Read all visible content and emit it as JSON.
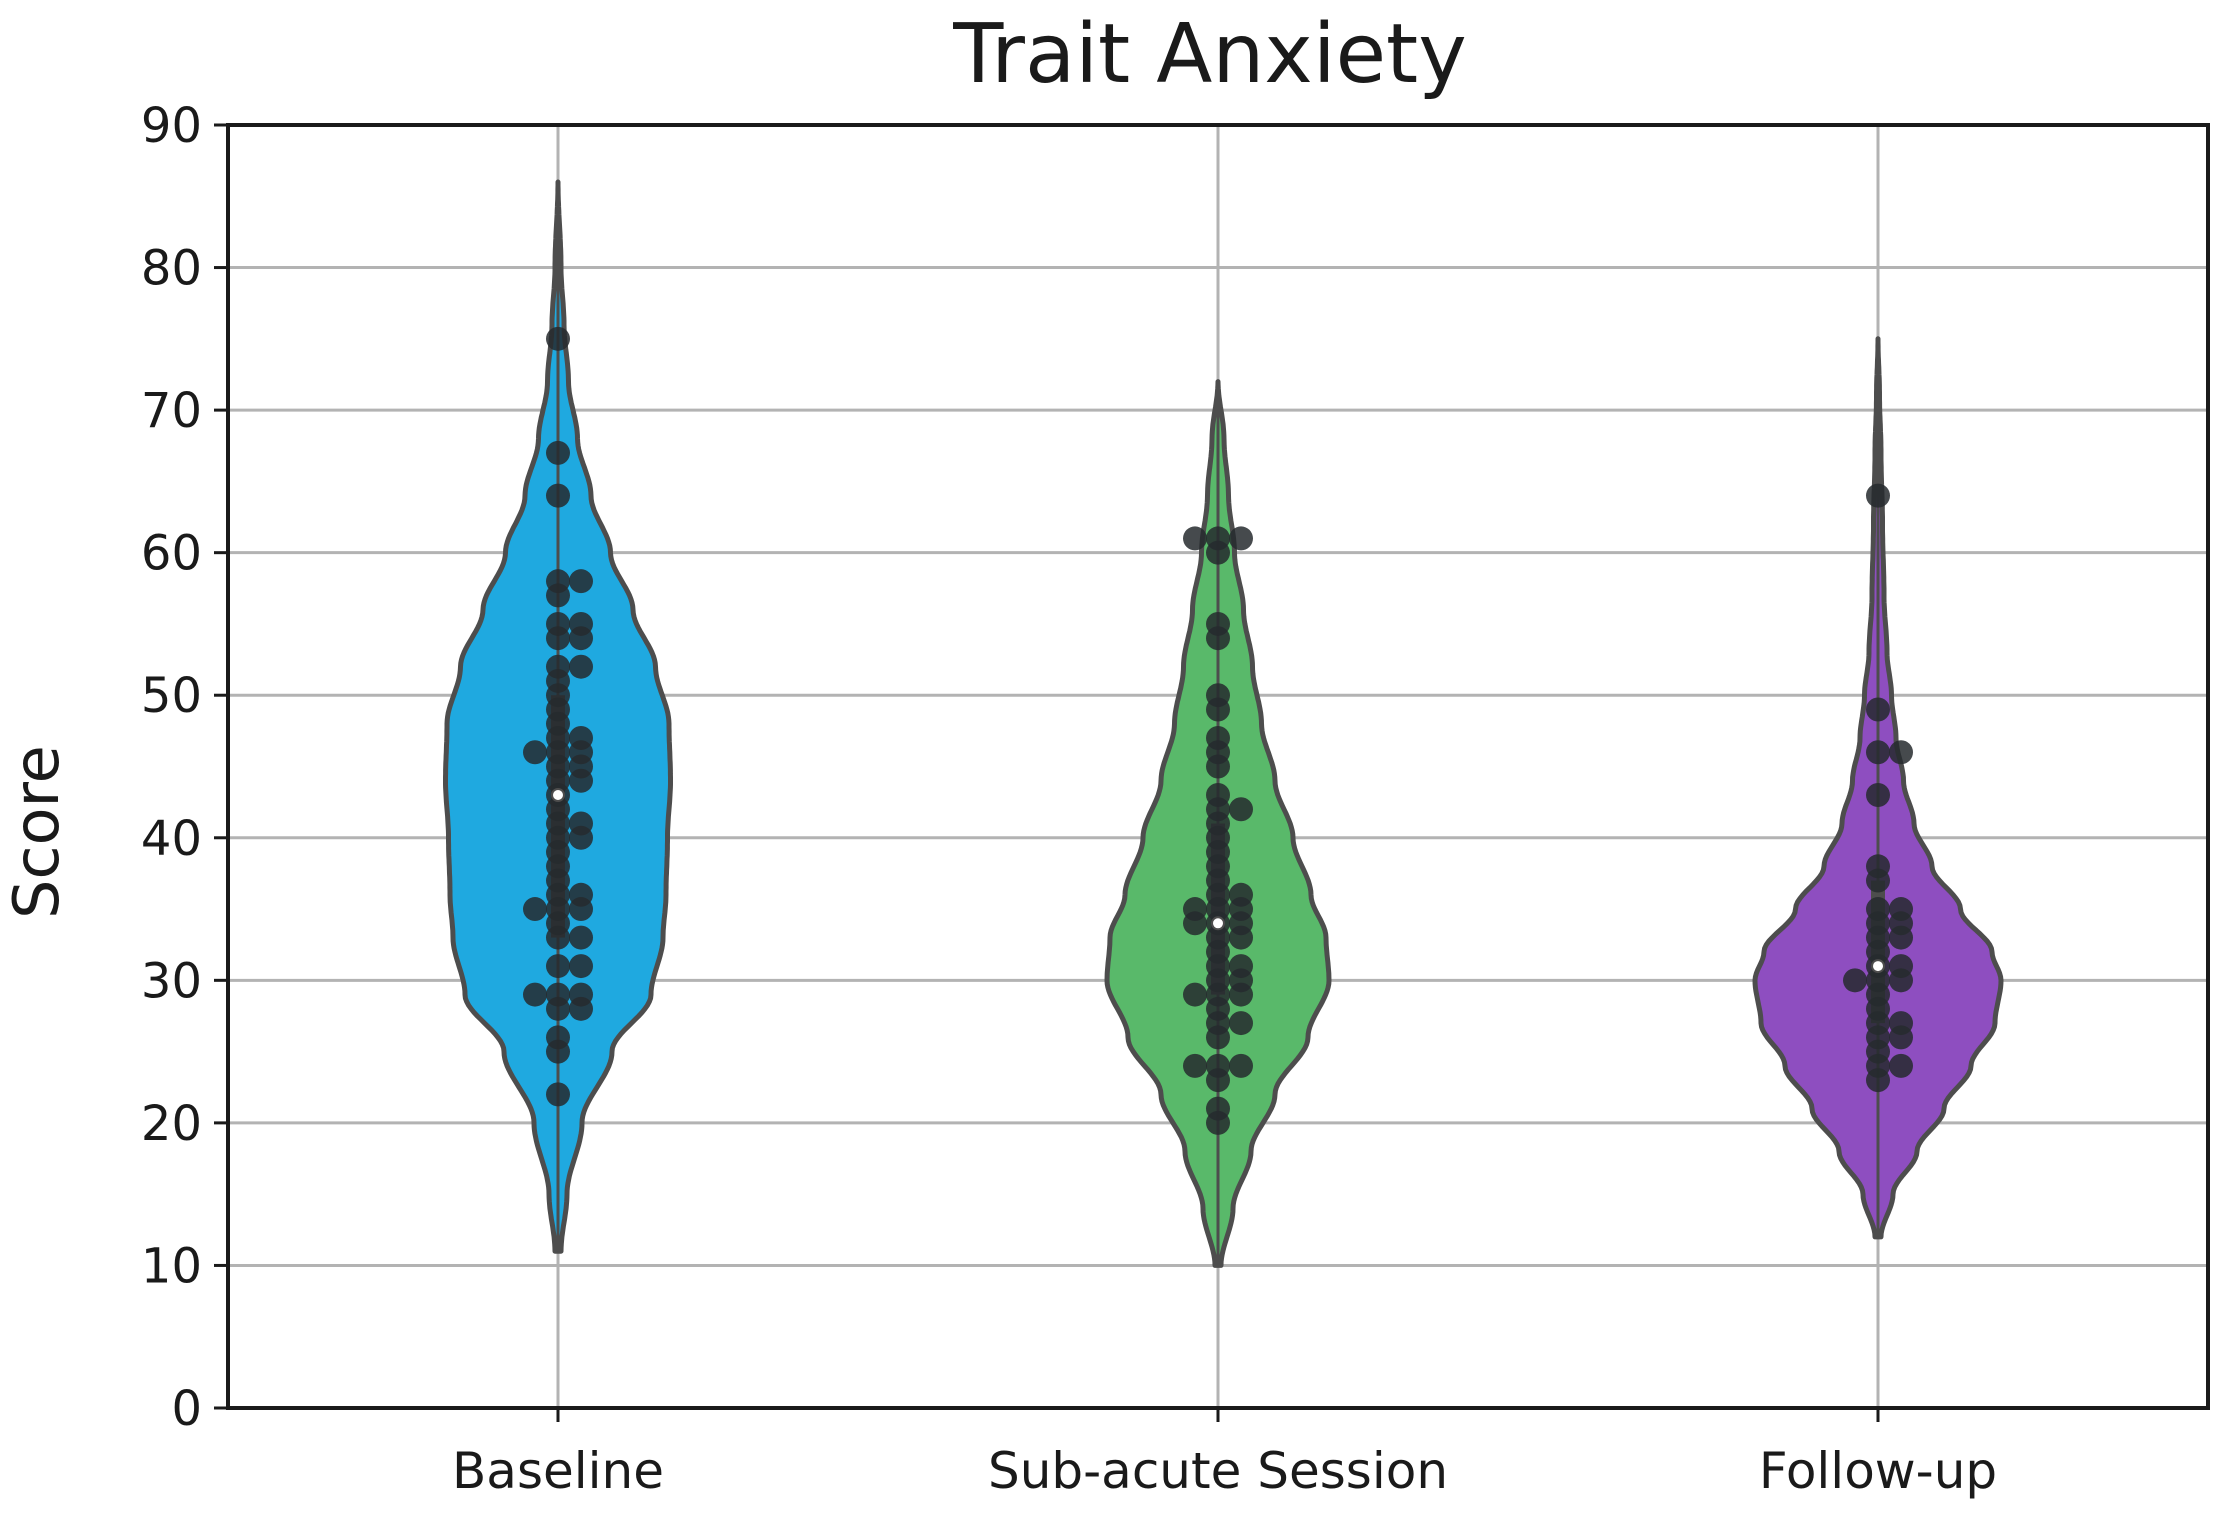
{
  "chart_data": {
    "type": "violin",
    "title": "Trait Anxiety",
    "xlabel": "",
    "ylabel": "Score",
    "ylim": [
      0,
      90
    ],
    "yticks": [
      0,
      10,
      20,
      30,
      40,
      50,
      60,
      70,
      80,
      90
    ],
    "grid": true,
    "legend": "none",
    "colors": {
      "grid": "#b3b3b3",
      "axis": "#1a1a1a",
      "violin_edge": "#4d4d4d",
      "points": "#262a2e",
      "median": "#ffffff"
    },
    "categories": [
      "Baseline",
      "Sub-acute Session",
      "Follow-up"
    ],
    "series": [
      {
        "category": "Baseline",
        "color": "#1fa9e0",
        "min": 11,
        "max": 86,
        "q1": 33,
        "median": 43,
        "q3": 50,
        "density_profile": [
          [
            11,
            0.02
          ],
          [
            15,
            0.06
          ],
          [
            20,
            0.16
          ],
          [
            25,
            0.36
          ],
          [
            29,
            0.62
          ],
          [
            33,
            0.7
          ],
          [
            36,
            0.72
          ],
          [
            40,
            0.73
          ],
          [
            44,
            0.75
          ],
          [
            48,
            0.74
          ],
          [
            52,
            0.65
          ],
          [
            56,
            0.5
          ],
          [
            60,
            0.35
          ],
          [
            64,
            0.22
          ],
          [
            68,
            0.13
          ],
          [
            72,
            0.07
          ],
          [
            76,
            0.04
          ],
          [
            80,
            0.02
          ],
          [
            86,
            0.0
          ]
        ],
        "points": [
          75,
          67,
          64,
          58,
          58,
          57,
          55,
          55,
          54,
          54,
          52,
          52,
          51,
          50,
          49,
          48,
          47,
          47,
          46,
          46,
          46,
          45,
          45,
          44,
          44,
          43,
          42,
          41,
          41,
          40,
          40,
          39,
          38,
          37,
          36,
          36,
          35,
          35,
          35,
          34,
          33,
          33,
          31,
          31,
          29,
          29,
          29,
          28,
          28,
          26,
          25,
          22
        ]
      },
      {
        "category": "Sub-acute Session",
        "color": "#59b96a",
        "min": 10,
        "max": 72,
        "q1": 29,
        "median": 34,
        "q3": 41,
        "density_profile": [
          [
            10,
            0.02
          ],
          [
            14,
            0.1
          ],
          [
            18,
            0.22
          ],
          [
            22,
            0.38
          ],
          [
            26,
            0.6
          ],
          [
            30,
            0.74
          ],
          [
            33,
            0.72
          ],
          [
            36,
            0.62
          ],
          [
            40,
            0.5
          ],
          [
            44,
            0.38
          ],
          [
            48,
            0.29
          ],
          [
            52,
            0.23
          ],
          [
            56,
            0.17
          ],
          [
            60,
            0.11
          ],
          [
            64,
            0.07
          ],
          [
            68,
            0.04
          ],
          [
            72,
            0.0
          ]
        ],
        "points": [
          61,
          61,
          61,
          60,
          55,
          54,
          50,
          49,
          47,
          46,
          45,
          43,
          42,
          42,
          41,
          40,
          39,
          38,
          37,
          36,
          36,
          35,
          35,
          35,
          34,
          34,
          34,
          33,
          33,
          32,
          31,
          31,
          30,
          30,
          29,
          29,
          29,
          28,
          27,
          27,
          26,
          24,
          24,
          24,
          23,
          21,
          20
        ]
      },
      {
        "category": "Follow-up",
        "color": "#8e4ec0",
        "min": 12,
        "max": 75,
        "q1": 27,
        "median": 31,
        "q3": 37,
        "density_profile": [
          [
            12,
            0.02
          ],
          [
            15,
            0.1
          ],
          [
            18,
            0.26
          ],
          [
            21,
            0.44
          ],
          [
            24,
            0.62
          ],
          [
            27,
            0.78
          ],
          [
            30,
            0.82
          ],
          [
            32,
            0.76
          ],
          [
            35,
            0.55
          ],
          [
            38,
            0.36
          ],
          [
            41,
            0.24
          ],
          [
            44,
            0.17
          ],
          [
            47,
            0.12
          ],
          [
            50,
            0.09
          ],
          [
            53,
            0.06
          ],
          [
            57,
            0.04
          ],
          [
            62,
            0.03
          ],
          [
            67,
            0.02
          ],
          [
            71,
            0.01
          ],
          [
            75,
            0.0
          ]
        ],
        "points": [
          64,
          49,
          46,
          46,
          43,
          38,
          37,
          35,
          35,
          34,
          34,
          33,
          33,
          32,
          31,
          31,
          30,
          30,
          30,
          29,
          28,
          27,
          27,
          26,
          26,
          25,
          24,
          24,
          23
        ]
      }
    ]
  }
}
